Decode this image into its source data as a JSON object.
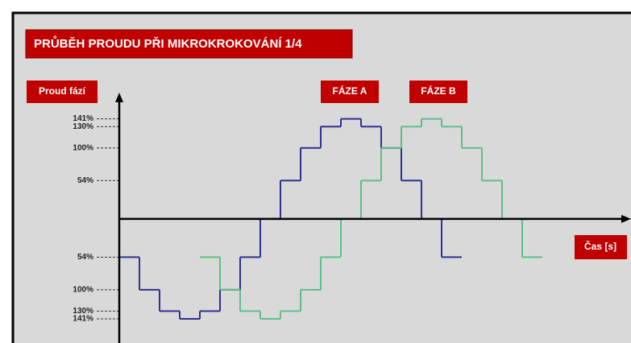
{
  "chart_data": {
    "type": "step",
    "title": "PRŮBĚH PROUDU PŘI MIKROKROKOVÁNÍ 1/4",
    "y_label": "Proud fází",
    "x_label": "Čas [s]",
    "xlim": [
      0,
      25.4
    ],
    "ylim": [
      -175,
      178
    ],
    "yticks": [
      {
        "value": 141,
        "label": "141%"
      },
      {
        "value": 130,
        "label": "130%"
      },
      {
        "value": 100,
        "label": "100%"
      },
      {
        "value": 54,
        "label": "54%"
      },
      {
        "value": -54,
        "label": "54%"
      },
      {
        "value": -100,
        "label": "100%"
      },
      {
        "value": -130,
        "label": "130%"
      },
      {
        "value": -141,
        "label": "141%"
      }
    ],
    "series": [
      {
        "name": "FÁZE A",
        "color": "#2e3192",
        "x": [
          0,
          1,
          2,
          3,
          4,
          5,
          6,
          7,
          8,
          9,
          10,
          11,
          12,
          13,
          14,
          15,
          16
        ],
        "values": [
          -54,
          -100,
          -130,
          -141,
          -130,
          -100,
          -54,
          0,
          54,
          100,
          130,
          141,
          130,
          100,
          54,
          0,
          -54
        ]
      },
      {
        "name": "FÁZE B",
        "color": "#5cbf8a",
        "x": [
          4,
          5,
          6,
          7,
          8,
          9,
          10,
          11,
          12,
          13,
          14,
          15,
          16,
          17,
          18,
          19,
          20
        ],
        "values": [
          -54,
          -100,
          -130,
          -141,
          -130,
          -100,
          -54,
          0,
          54,
          100,
          130,
          141,
          130,
          100,
          54,
          0,
          -54
        ]
      }
    ]
  }
}
